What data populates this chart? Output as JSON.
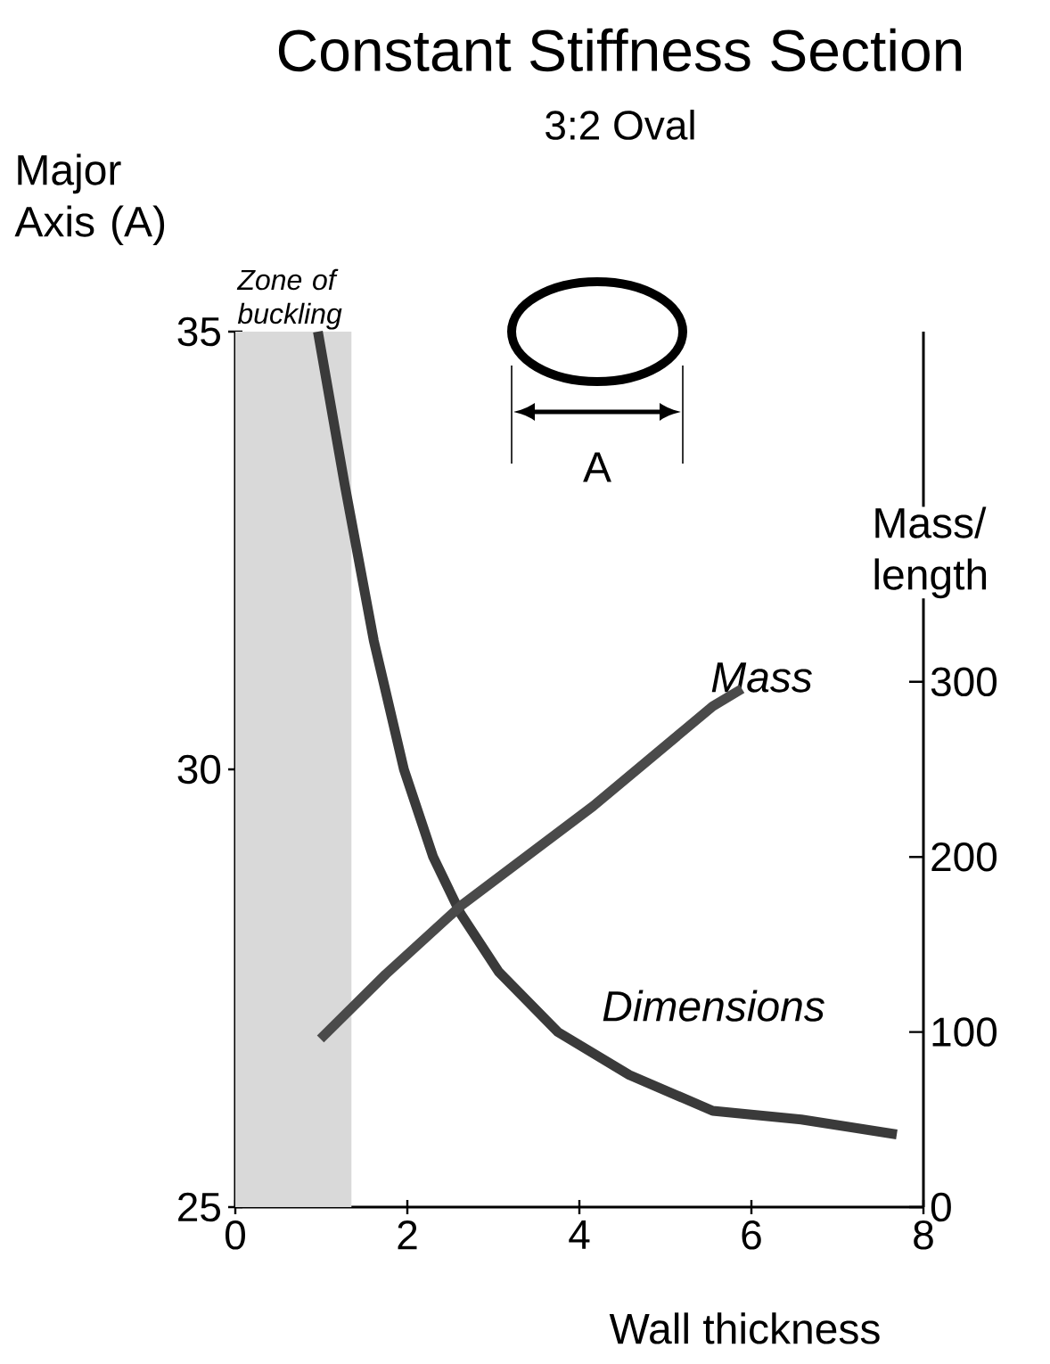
{
  "chart_data": {
    "type": "line",
    "title": "Constant Stiffness Section",
    "subtitle": "3:2 Oval",
    "xlabel": "Wall thickness",
    "ylabel": "Major Axis (A)",
    "y2label": "Mass/ length",
    "xlim": [
      0,
      8
    ],
    "xticks": [
      0,
      2,
      4,
      6,
      8
    ],
    "ylim": [
      25,
      35
    ],
    "yticks": [
      25,
      30,
      35
    ],
    "y2lim": [
      0,
      500
    ],
    "y2ticks": [
      0,
      100,
      200,
      300
    ],
    "series": [
      {
        "name": "Dimensions",
        "color": "#3a3a3a",
        "x": [
          0.96,
          1.27,
          1.61,
          1.96,
          2.3,
          2.62,
          3.06,
          3.75,
          4.58,
          5.55,
          6.58,
          7.69
        ],
        "values": [
          35.0,
          33.26,
          31.47,
          30.0,
          29.0,
          28.35,
          27.69,
          27.0,
          26.51,
          26.1,
          26.0,
          25.83
        ]
      },
      {
        "name": "Mass",
        "color": "#4a4a4a",
        "axis": "y2",
        "x": [
          0.99,
          1.75,
          2.62,
          4.16,
          5.55,
          5.89
        ],
        "values": [
          96,
          133,
          172,
          229,
          286,
          296
        ]
      }
    ],
    "bands": [
      {
        "axis": "x",
        "from": 0,
        "to": 1.35,
        "label": "Zone of buckling",
        "color": "#d9d9d9"
      }
    ],
    "annotations": [
      "A"
    ]
  }
}
